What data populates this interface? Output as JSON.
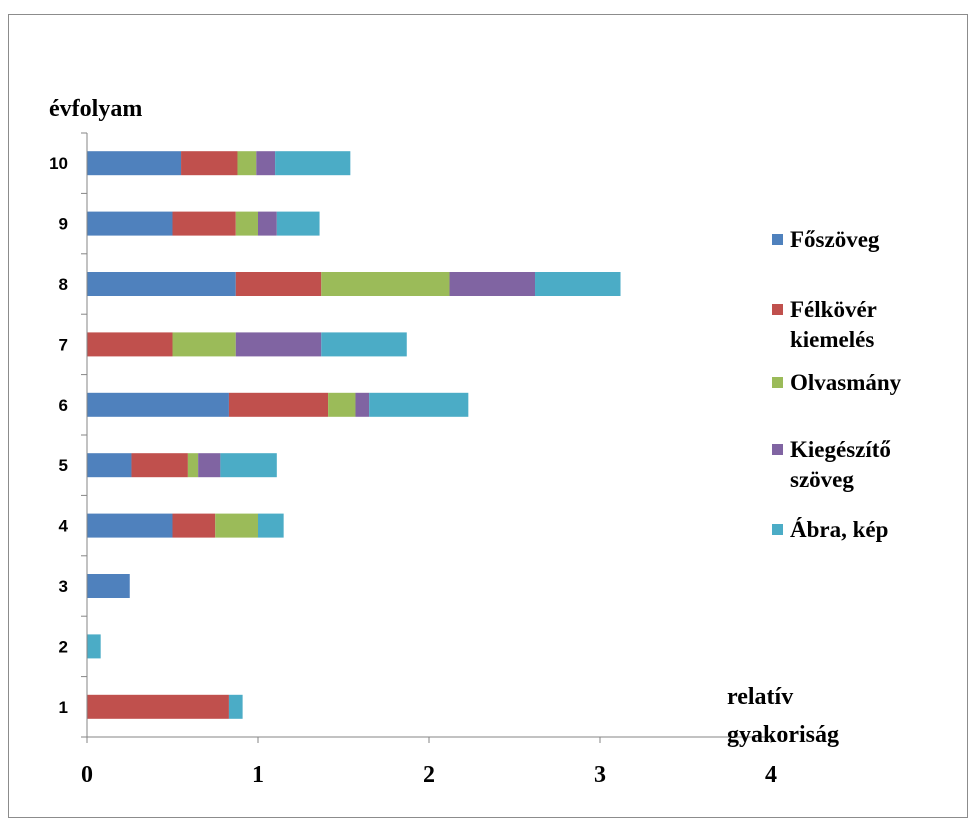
{
  "chart_data": {
    "type": "bar",
    "orientation": "horizontal",
    "stacked": true,
    "ylabel": "évfolyam",
    "xlabel": "relatív gyakoriság",
    "categories": [
      "1",
      "2",
      "3",
      "4",
      "5",
      "6",
      "7",
      "8",
      "9",
      "10"
    ],
    "xlim": [
      0,
      4
    ],
    "x_ticks": [
      "0",
      "1",
      "2",
      "3",
      "4"
    ],
    "grid": false,
    "legend_position": "right",
    "series": [
      {
        "name": "Főszöveg",
        "color": "#4F81BD",
        "values": [
          0,
          0,
          0.25,
          0.5,
          0.26,
          0.83,
          0,
          0.87,
          0.5,
          0.55
        ]
      },
      {
        "name": "Félkövér kiemelés",
        "color": "#C0504D",
        "values": [
          0.83,
          0,
          0,
          0.25,
          0.33,
          0.58,
          0.5,
          0.5,
          0.37,
          0.33
        ]
      },
      {
        "name": "Olvasmány",
        "color": "#9BBB59",
        "values": [
          0,
          0,
          0,
          0.25,
          0.06,
          0.16,
          0.37,
          0.75,
          0.13,
          0.11
        ]
      },
      {
        "name": "Kiegészítő szöveg",
        "color": "#8064A2",
        "values": [
          0,
          0,
          0,
          0,
          0.13,
          0.08,
          0.5,
          0.5,
          0.11,
          0.11
        ]
      },
      {
        "name": "Ábra, kép",
        "color": "#4BACC6",
        "values": [
          0.08,
          0.08,
          0,
          0.15,
          0.33,
          0.58,
          0.5,
          0.5,
          0.25,
          0.44
        ]
      }
    ]
  }
}
